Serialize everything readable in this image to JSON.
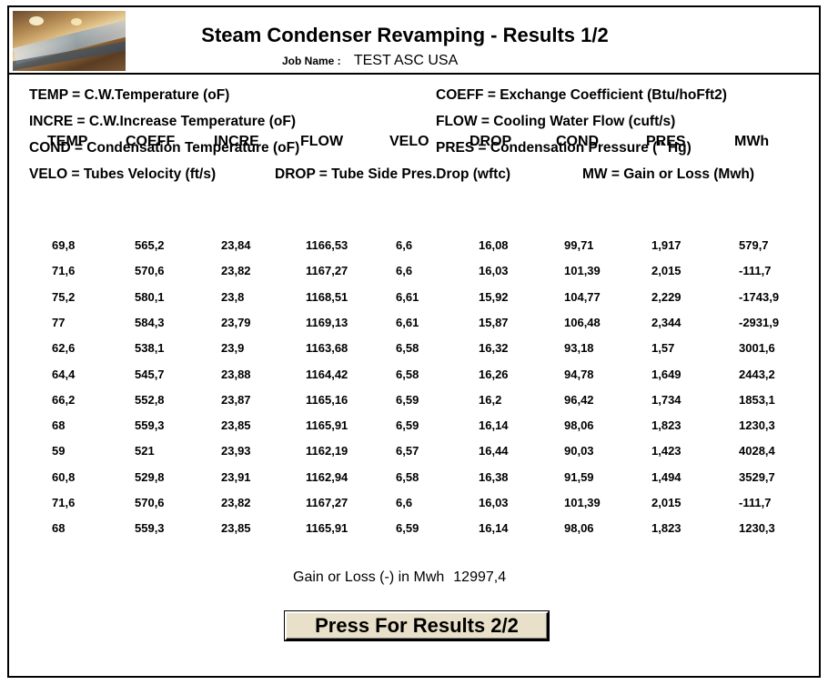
{
  "header": {
    "title": "Steam Condenser Revamping - Results 1/2",
    "job_label": "Job Name :",
    "job_name": "TEST ASC USA"
  },
  "legend": {
    "temp": "TEMP = C.W.Temperature (oF)",
    "coeff": "COEFF = Exchange Coefficient (Btu/hoFft2)",
    "incre": "INCRE = C.W.Increase Temperature (oF)",
    "flow": "FLOW = Cooling Water Flow (cuft/s)",
    "cond": "COND = Condensation Temperature (oF)",
    "pres": "PRES = Condensation Pressure (\" Hg)",
    "velo": "VELO = Tubes Velocity (ft/s)",
    "drop": "DROP = Tube Side Pres.Drop (wftc)",
    "mw": "MW = Gain or Loss  (Mwh)"
  },
  "table": {
    "columns": [
      "TEMP",
      "COEFF",
      "INCRE",
      "FLOW",
      "VELO",
      "DROP",
      "COND",
      "PRES",
      "MWh"
    ],
    "rows": [
      [
        "69,8",
        "565,2",
        "23,84",
        "1166,53",
        "6,6",
        "16,08",
        "99,71",
        "1,917",
        "579,7"
      ],
      [
        "71,6",
        "570,6",
        "23,82",
        "1167,27",
        "6,6",
        "16,03",
        "101,39",
        "2,015",
        "-111,7"
      ],
      [
        "75,2",
        "580,1",
        "23,8",
        "1168,51",
        "6,61",
        "15,92",
        "104,77",
        "2,229",
        "-1743,9"
      ],
      [
        "77",
        "584,3",
        "23,79",
        "1169,13",
        "6,61",
        "15,87",
        "106,48",
        "2,344",
        "-2931,9"
      ],
      [
        "62,6",
        "538,1",
        "23,9",
        "1163,68",
        "6,58",
        "16,32",
        "93,18",
        "1,57",
        "3001,6"
      ],
      [
        "64,4",
        "545,7",
        "23,88",
        "1164,42",
        "6,58",
        "16,26",
        "94,78",
        "1,649",
        "2443,2"
      ],
      [
        "66,2",
        "552,8",
        "23,87",
        "1165,16",
        "6,59",
        "16,2",
        "96,42",
        "1,734",
        "1853,1"
      ],
      [
        "68",
        "559,3",
        "23,85",
        "1165,91",
        "6,59",
        "16,14",
        "98,06",
        "1,823",
        "1230,3"
      ],
      [
        "59",
        "521",
        "23,93",
        "1162,19",
        "6,57",
        "16,44",
        "90,03",
        "1,423",
        "4028,4"
      ],
      [
        "60,8",
        "529,8",
        "23,91",
        "1162,94",
        "6,58",
        "16,38",
        "91,59",
        "1,494",
        "3529,7"
      ],
      [
        "71,6",
        "570,6",
        "23,82",
        "1167,27",
        "6,6",
        "16,03",
        "101,39",
        "2,015",
        "-111,7"
      ],
      [
        "68",
        "559,3",
        "23,85",
        "1165,91",
        "6,59",
        "16,14",
        "98,06",
        "1,823",
        "1230,3"
      ]
    ]
  },
  "summary": {
    "label": "Gain or Loss (-) in Mwh",
    "value": "12997,4"
  },
  "button": {
    "label": "Press For Results 2/2"
  },
  "colors": {
    "button_face": "#e8e0c8",
    "border": "#000000"
  }
}
